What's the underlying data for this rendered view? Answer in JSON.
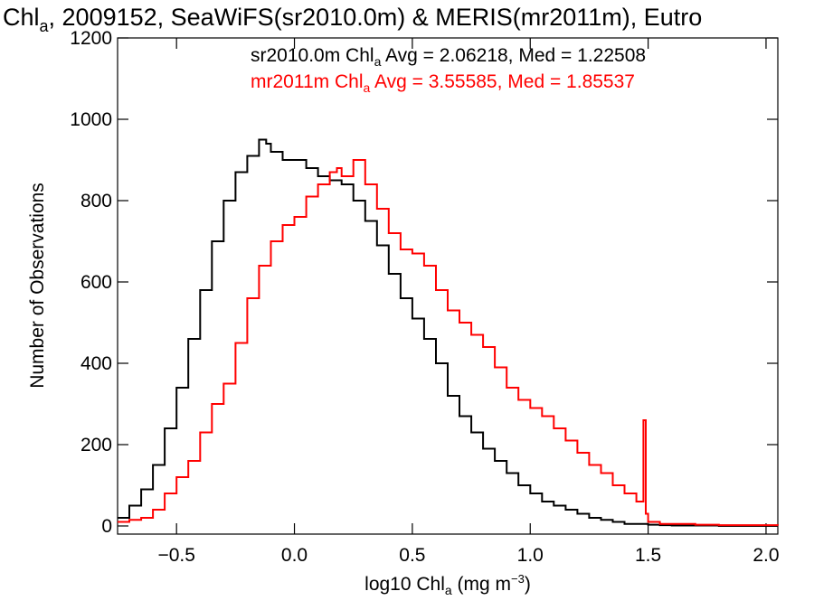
{
  "chart_data": {
    "type": "line",
    "title": {
      "prefix": "Chl",
      "sub": "a",
      "rest": ", 2009152, SeaWiFS(sr2010.0m) & MERIS(mr2011m), Eutro"
    },
    "xlabel": {
      "prefix": "log10 Chl",
      "sub": "a",
      "mid": " (mg m",
      "sup": "−3",
      "end": ")"
    },
    "ylabel": "Number of Observations",
    "xlim": [
      -0.75,
      2.05
    ],
    "ylim": [
      -20,
      1200
    ],
    "xticks": [
      {
        "v": -0.5,
        "label": "−0.5"
      },
      {
        "v": 0.0,
        "label": "0.0"
      },
      {
        "v": 0.5,
        "label": "0.5"
      },
      {
        "v": 1.0,
        "label": "1.0"
      },
      {
        "v": 1.5,
        "label": "1.5"
      },
      {
        "v": 2.0,
        "label": "2.0"
      }
    ],
    "yticks": [
      {
        "v": 0,
        "label": "0"
      },
      {
        "v": 200,
        "label": "200"
      },
      {
        "v": 400,
        "label": "400"
      },
      {
        "v": 600,
        "label": "600"
      },
      {
        "v": 800,
        "label": "800"
      },
      {
        "v": 1000,
        "label": "1000"
      },
      {
        "v": 1200,
        "label": "1200"
      }
    ],
    "grid": false,
    "series": [
      {
        "name": "sr2010.0m",
        "color": "#000000",
        "annotation": {
          "prefix": "sr2010.0m Chl",
          "sub": "a",
          "rest": " Avg = 2.06218, Med = 1.22508"
        },
        "x": [
          -0.75,
          -0.7,
          -0.65,
          -0.6,
          -0.55,
          -0.5,
          -0.45,
          -0.4,
          -0.35,
          -0.3,
          -0.25,
          -0.2,
          -0.15,
          -0.12,
          -0.1,
          -0.05,
          0.0,
          0.05,
          0.1,
          0.15,
          0.2,
          0.25,
          0.3,
          0.35,
          0.4,
          0.45,
          0.5,
          0.55,
          0.6,
          0.65,
          0.7,
          0.75,
          0.8,
          0.85,
          0.9,
          0.95,
          1.0,
          1.05,
          1.1,
          1.15,
          1.2,
          1.25,
          1.3,
          1.35,
          1.4,
          1.45,
          1.5,
          1.55,
          1.6,
          1.7,
          1.8,
          2.05
        ],
        "values": [
          20,
          50,
          90,
          150,
          240,
          340,
          460,
          580,
          700,
          800,
          870,
          910,
          950,
          940,
          920,
          900,
          900,
          880,
          860,
          850,
          840,
          800,
          750,
          690,
          620,
          560,
          510,
          460,
          400,
          320,
          270,
          230,
          190,
          160,
          130,
          100,
          80,
          60,
          50,
          40,
          30,
          20,
          15,
          10,
          5,
          5,
          3,
          2,
          1,
          1,
          0,
          0
        ]
      },
      {
        "name": "mr2011m",
        "color": "#ff0000",
        "annotation": {
          "prefix": "mr2011m Chl",
          "sub": "a",
          "rest": " Avg = 3.55585, Med = 1.85537"
        },
        "x": [
          -0.75,
          -0.7,
          -0.65,
          -0.6,
          -0.55,
          -0.5,
          -0.45,
          -0.4,
          -0.35,
          -0.3,
          -0.25,
          -0.2,
          -0.15,
          -0.1,
          -0.05,
          0.0,
          0.05,
          0.1,
          0.15,
          0.18,
          0.2,
          0.25,
          0.3,
          0.35,
          0.4,
          0.45,
          0.5,
          0.55,
          0.6,
          0.65,
          0.7,
          0.75,
          0.8,
          0.85,
          0.9,
          0.95,
          1.0,
          1.05,
          1.1,
          1.15,
          1.2,
          1.25,
          1.3,
          1.35,
          1.4,
          1.45,
          1.48,
          1.49,
          1.5,
          1.55,
          1.6,
          1.7,
          1.8,
          2.05
        ],
        "values": [
          10,
          15,
          20,
          40,
          80,
          120,
          160,
          230,
          300,
          350,
          450,
          560,
          640,
          700,
          740,
          760,
          810,
          840,
          870,
          880,
          860,
          900,
          840,
          780,
          720,
          680,
          670,
          640,
          580,
          530,
          500,
          470,
          440,
          390,
          340,
          310,
          290,
          270,
          240,
          210,
          180,
          150,
          130,
          100,
          80,
          60,
          260,
          30,
          10,
          5,
          5,
          3,
          2,
          1
        ]
      }
    ]
  }
}
